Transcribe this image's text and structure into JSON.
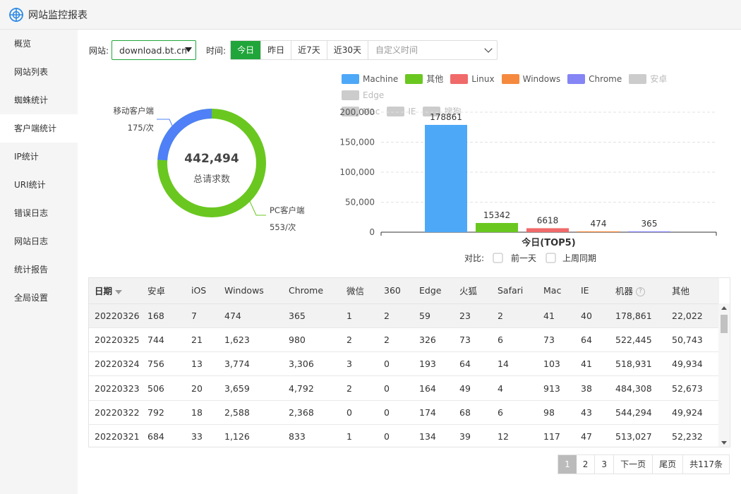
{
  "app": {
    "title": "网站监控报表"
  },
  "sidebar": {
    "items": [
      {
        "label": "概览"
      },
      {
        "label": "网站列表"
      },
      {
        "label": "蜘蛛统计"
      },
      {
        "label": "客户端统计"
      },
      {
        "label": "IP统计"
      },
      {
        "label": "URI统计"
      },
      {
        "label": "错误日志"
      },
      {
        "label": "网站日志"
      },
      {
        "label": "统计报告"
      },
      {
        "label": "全局设置"
      }
    ],
    "active": "客户端统计"
  },
  "filter": {
    "site_label": "网站:",
    "site_value": "download.bt.cn",
    "time_label": "时间:",
    "buttons": [
      "今日",
      "昨日",
      "近7天",
      "近30天"
    ],
    "active_button": "今日",
    "custom_placeholder": "自定义时间"
  },
  "donut": {
    "total": "442,494",
    "total_label": "总请求数",
    "mobile_label": "移动客户端",
    "mobile_value": "175/次",
    "pc_label": "PC客户端",
    "pc_value": "553/次",
    "mobile_count": 175,
    "pc_count": 553,
    "colors": {
      "mobile": "#4f80f7",
      "pc": "#6ac720"
    }
  },
  "legend": [
    {
      "name": "Machine",
      "color": "#4da8f8",
      "enabled": true
    },
    {
      "name": "其他",
      "color": "#6ac720",
      "enabled": true
    },
    {
      "name": "Linux",
      "color": "#f06a6a",
      "enabled": true
    },
    {
      "name": "Windows",
      "color": "#f58a3e",
      "enabled": true
    },
    {
      "name": "Chrome",
      "color": "#8585f5",
      "enabled": true
    },
    {
      "name": "安卓",
      "color": "#cccccc",
      "enabled": false
    },
    {
      "name": "Edge",
      "color": "#cccccc",
      "enabled": false
    },
    {
      "name": "Mac",
      "color": "#cccccc",
      "enabled": false
    },
    {
      "name": "IE",
      "color": "#cccccc",
      "enabled": false
    },
    {
      "name": "搜狗",
      "color": "#cccccc",
      "enabled": false
    }
  ],
  "chart_data": {
    "type": "bar",
    "categories": [
      "Machine",
      "其他",
      "Linux",
      "Windows",
      "Chrome"
    ],
    "values": [
      178861,
      15342,
      6618,
      474,
      365
    ],
    "colors": [
      "#4da8f8",
      "#6ac720",
      "#f06a6a",
      "#f58a3e",
      "#8585f5"
    ],
    "title": "今日(TOP5)",
    "ylim": [
      0,
      200000
    ],
    "yticks": [
      "0",
      "50,000",
      "100,000",
      "150,000",
      "200,000"
    ],
    "grid": true
  },
  "compare": {
    "label": "对比:",
    "options": [
      "前一天",
      "上周同期"
    ]
  },
  "table": {
    "columns": [
      "日期",
      "安卓",
      "iOS",
      "Windows",
      "Chrome",
      "微信",
      "360",
      "Edge",
      "火狐",
      "Safari",
      "Mac",
      "IE",
      "机器",
      "其他"
    ],
    "rows": [
      [
        "20220326",
        "168",
        "7",
        "474",
        "365",
        "1",
        "2",
        "59",
        "23",
        "2",
        "41",
        "40",
        "178,861",
        "22,022"
      ],
      [
        "20220325",
        "744",
        "21",
        "1,623",
        "980",
        "2",
        "2",
        "326",
        "73",
        "6",
        "73",
        "64",
        "522,445",
        "50,743"
      ],
      [
        "20220324",
        "756",
        "13",
        "3,774",
        "3,306",
        "3",
        "0",
        "193",
        "64",
        "14",
        "103",
        "41",
        "518,931",
        "49,934"
      ],
      [
        "20220323",
        "506",
        "20",
        "3,659",
        "4,792",
        "2",
        "0",
        "164",
        "49",
        "4",
        "913",
        "38",
        "484,308",
        "52,673"
      ],
      [
        "20220322",
        "792",
        "18",
        "2,588",
        "2,368",
        "0",
        "0",
        "174",
        "68",
        "6",
        "98",
        "43",
        "544,294",
        "49,924"
      ],
      [
        "20220321",
        "684",
        "33",
        "1,126",
        "833",
        "1",
        "0",
        "134",
        "39",
        "12",
        "117",
        "47",
        "513,027",
        "52,232"
      ]
    ]
  },
  "pager": {
    "pages": [
      "1",
      "2",
      "3"
    ],
    "next": "下一页",
    "last": "尾页",
    "total": "共117条",
    "current": "1"
  }
}
